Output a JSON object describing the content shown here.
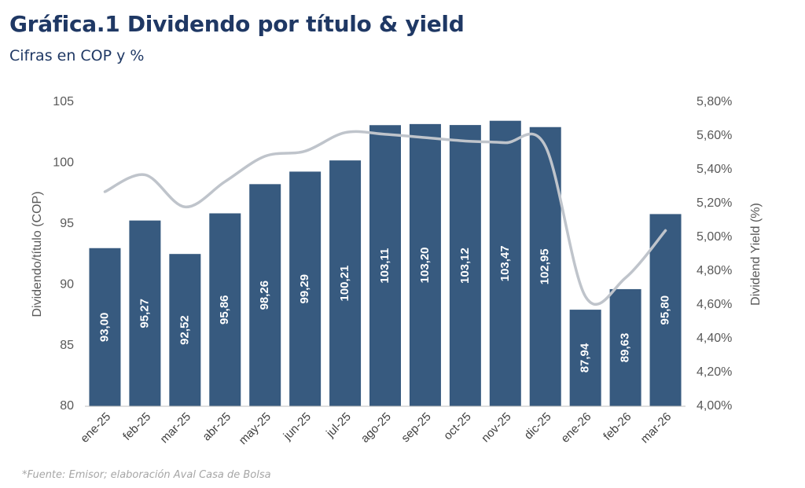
{
  "header": {
    "title": "Gráfica.1 Dividendo por título & yield",
    "subtitle": "Cifras en COP y %"
  },
  "footer": {
    "source": "*Fuente: Emisor; elaboración Aval Casa de Bolsa"
  },
  "colors": {
    "bar": "#375a7f",
    "line": "#bfc4cb",
    "title": "#1f3864"
  },
  "chart_data": {
    "type": "bar",
    "categories": [
      "ene-25",
      "feb-25",
      "mar-25",
      "abr-25",
      "may-25",
      "jun-25",
      "jul-25",
      "ago-25",
      "sep-25",
      "oct-25",
      "nov-25",
      "dic-25",
      "ene-26",
      "feb-26",
      "mar-26"
    ],
    "series": [
      {
        "type": "bar",
        "axis": "left",
        "values": [
          93.0,
          95.27,
          92.52,
          95.86,
          98.26,
          99.29,
          100.21,
          103.11,
          103.2,
          103.12,
          103.47,
          102.95,
          87.94,
          89.63,
          95.8
        ],
        "labels": [
          "93,00",
          "95,27",
          "92,52",
          "95,86",
          "98,26",
          "99,29",
          "100,21",
          "103,11",
          "103,20",
          "103,12",
          "103,47",
          "102,95",
          "87,94",
          "89,63",
          "95,80"
        ]
      },
      {
        "type": "line",
        "axis": "right",
        "values": [
          5.27,
          5.37,
          5.18,
          5.33,
          5.48,
          5.51,
          5.62,
          5.61,
          5.59,
          5.57,
          5.56,
          5.54,
          4.65,
          4.76,
          5.04
        ]
      }
    ],
    "ylabel": "Dividendo/título (COP)",
    "y2label": "Dividend Yield (%)",
    "ylim": [
      80,
      105
    ],
    "y2lim": [
      4.0,
      5.8
    ],
    "yticks": [
      "80",
      "85",
      "90",
      "95",
      "100",
      "105"
    ],
    "y2ticks": [
      "4,00%",
      "4,20%",
      "4,40%",
      "4,60%",
      "4,80%",
      "5,00%",
      "5,20%",
      "5,40%",
      "5,60%",
      "5,80%"
    ],
    "grid": false,
    "legend": "none"
  }
}
